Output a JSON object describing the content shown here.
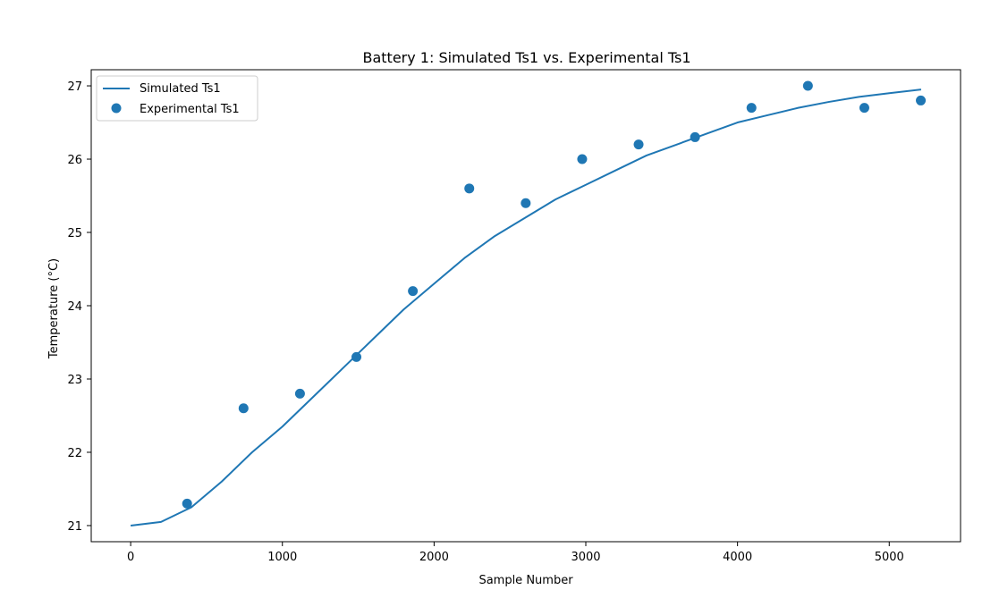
{
  "chart_data": {
    "type": "line",
    "title": "Battery 1: Simulated Ts1 vs. Experimental Ts1",
    "xlabel": "Sample Number",
    "ylabel": "Temperature (°C)",
    "xlim": [
      -260,
      5470
    ],
    "ylim": [
      20.78,
      27.22
    ],
    "xticks": [
      0,
      1000,
      2000,
      3000,
      4000,
      5000
    ],
    "yticks": [
      21,
      22,
      23,
      24,
      25,
      26,
      27
    ],
    "grid": false,
    "legend_position": "upper-left",
    "colors": {
      "series": "#1f77b4",
      "axes": "#000000",
      "background": "#ffffff"
    },
    "series": [
      {
        "name": "Simulated Ts1",
        "kind": "line",
        "x": [
          0,
          200,
          400,
          600,
          800,
          1000,
          1200,
          1400,
          1600,
          1800,
          2000,
          2200,
          2400,
          2600,
          2800,
          3000,
          3200,
          3400,
          3600,
          3800,
          4000,
          4200,
          4400,
          4600,
          4800,
          5000,
          5210
        ],
        "y": [
          21.0,
          21.05,
          21.25,
          21.6,
          22.0,
          22.35,
          22.75,
          23.15,
          23.55,
          23.95,
          24.3,
          24.65,
          24.95,
          25.2,
          25.45,
          25.65,
          25.85,
          26.05,
          26.2,
          26.35,
          26.5,
          26.6,
          26.7,
          26.78,
          26.85,
          26.9,
          26.95
        ]
      },
      {
        "name": "Experimental Ts1",
        "kind": "scatter",
        "x": [
          372,
          744,
          1116,
          1488,
          1860,
          2232,
          2604,
          2976,
          3348,
          3720,
          4092,
          4464,
          4836,
          5208
        ],
        "y": [
          21.3,
          22.6,
          22.8,
          23.3,
          24.2,
          25.6,
          25.4,
          26.0,
          26.2,
          26.3,
          26.7,
          27.0,
          26.7,
          26.8
        ]
      }
    ]
  }
}
